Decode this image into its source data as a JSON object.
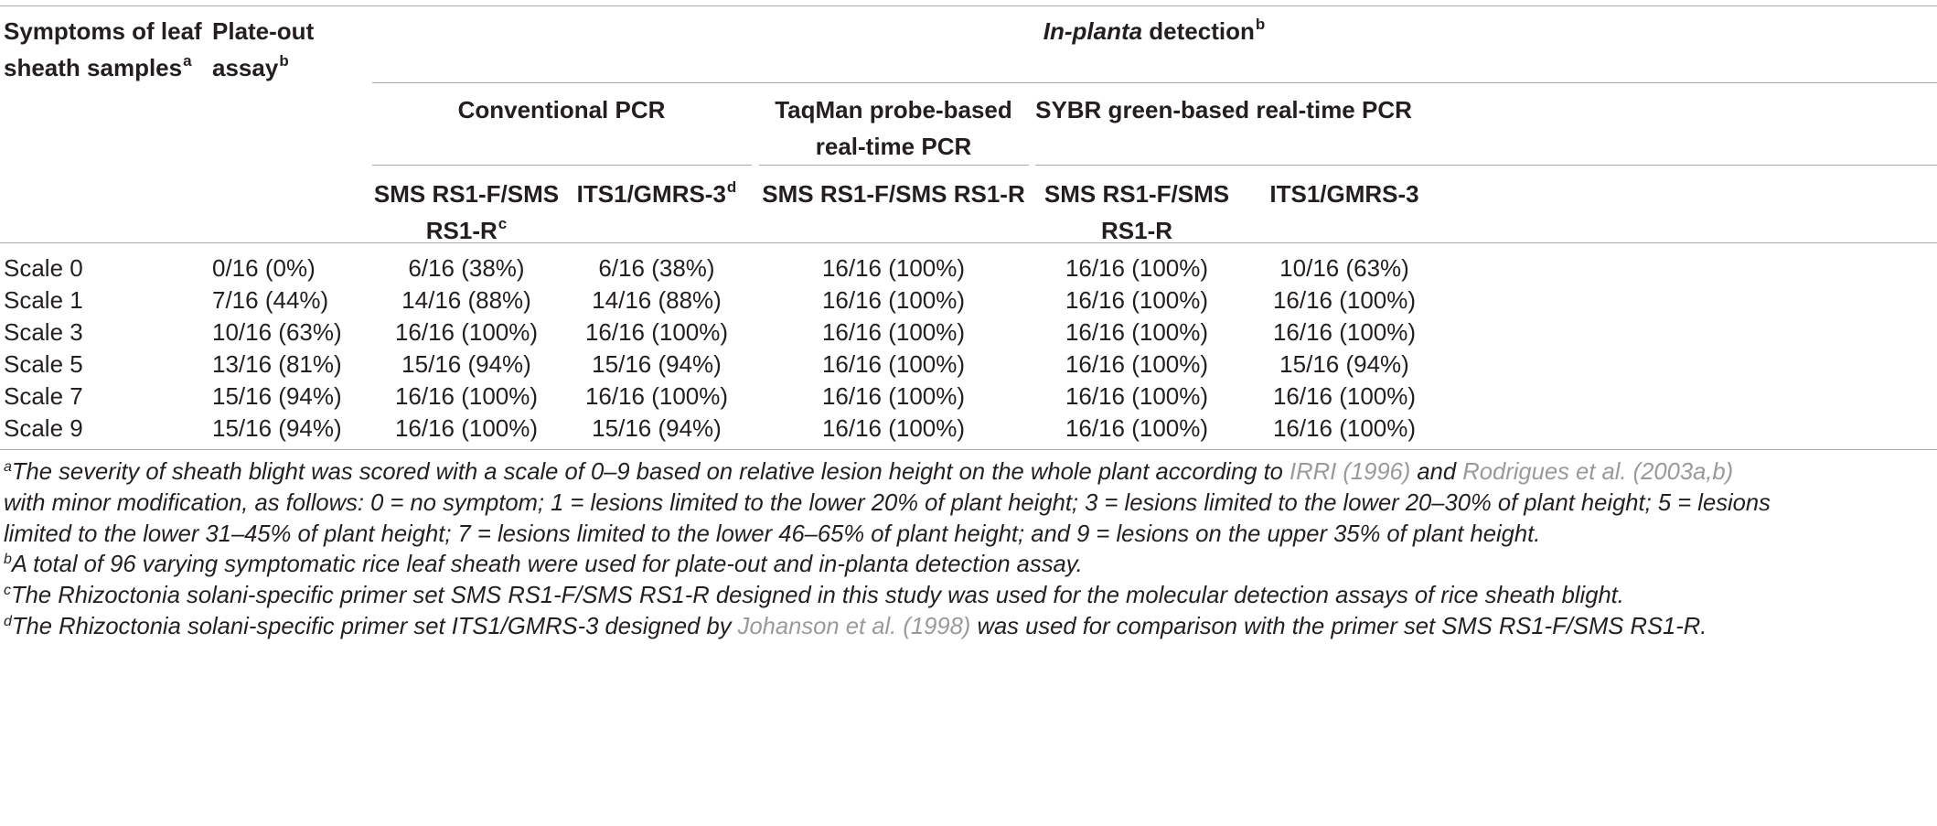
{
  "header": {
    "col1_line1": "Symptoms of leaf",
    "col1_line2": "sheath samples",
    "col1_sup": "a",
    "col2_line1": "Plate-out",
    "col2_line2": "assay",
    "col2_sup": "b",
    "group_italic": "In-planta",
    "group_rest": " detection",
    "group_sup": "b",
    "sub_conventional": "Conventional PCR",
    "sub_taqman_line1": "TaqMan probe-based",
    "sub_taqman_line2": "real-time PCR",
    "sub_sybr": "SYBR green-based real-time PCR",
    "p1_line1": "SMS RS1-F/SMS",
    "p1_line2": "RS1-R",
    "p1_sup": "c",
    "p2": "ITS1/GMRS-3",
    "p2_sup": "d",
    "p3": "SMS RS1-F/SMS RS1-R",
    "p4_line1": "SMS RS1-F/SMS",
    "p4_line2": "RS1-R",
    "p5": "ITS1/GMRS-3"
  },
  "rows": [
    [
      "Scale 0",
      "0/16 (0%)",
      "6/16 (38%)",
      "6/16 (38%)",
      "16/16 (100%)",
      "16/16 (100%)",
      "10/16 (63%)"
    ],
    [
      "Scale 1",
      "7/16 (44%)",
      "14/16 (88%)",
      "14/16 (88%)",
      "16/16 (100%)",
      "16/16 (100%)",
      "16/16 (100%)"
    ],
    [
      "Scale 3",
      "10/16 (63%)",
      "16/16 (100%)",
      "16/16 (100%)",
      "16/16 (100%)",
      "16/16 (100%)",
      "16/16 (100%)"
    ],
    [
      "Scale 5",
      "13/16 (81%)",
      "15/16 (94%)",
      "15/16 (94%)",
      "16/16 (100%)",
      "16/16 (100%)",
      "15/16 (94%)"
    ],
    [
      "Scale 7",
      "15/16 (94%)",
      "16/16 (100%)",
      "16/16 (100%)",
      "16/16 (100%)",
      "16/16 (100%)",
      "16/16 (100%)"
    ],
    [
      "Scale 9",
      "15/16 (94%)",
      "16/16 (100%)",
      "15/16 (94%)",
      "16/16 (100%)",
      "16/16 (100%)",
      "16/16 (100%)"
    ]
  ],
  "footnotes": {
    "a": {
      "mark": "a",
      "t1": "The severity of sheath blight was scored with a scale of 0–9 based on relative lesion height on the whole plant according to ",
      "ref1": "IRRI (1996)",
      "t2": " and ",
      "ref2": "Rodrigues et al. (2003a,b)",
      "line2": "with minor modification, as follows: 0 = no symptom; 1 = lesions limited to the lower 20% of plant height; 3 = lesions limited to the lower 20–30% of plant height; 5 = lesions",
      "line3": "limited to the lower 31–45% of plant height; 7 = lesions limited to the lower 46–65% of plant height; and 9 = lesions on the upper 35% of plant height."
    },
    "b": {
      "mark": "b",
      "text": "A total of 96 varying symptomatic rice leaf sheath were used for plate-out and in-planta detection assay."
    },
    "c": {
      "mark": "c",
      "text": "The Rhizoctonia solani-specific primer set SMS RS1-F/SMS RS1-R designed in this study was used for the molecular detection assays of rice sheath blight."
    },
    "d": {
      "mark": "d",
      "t1": "The Rhizoctonia solani-specific primer set ITS1/GMRS-3 designed by ",
      "ref": "Johanson et al. (1998)",
      "t2": " was used for comparison with the primer set SMS RS1-F/SMS RS1-R."
    }
  }
}
